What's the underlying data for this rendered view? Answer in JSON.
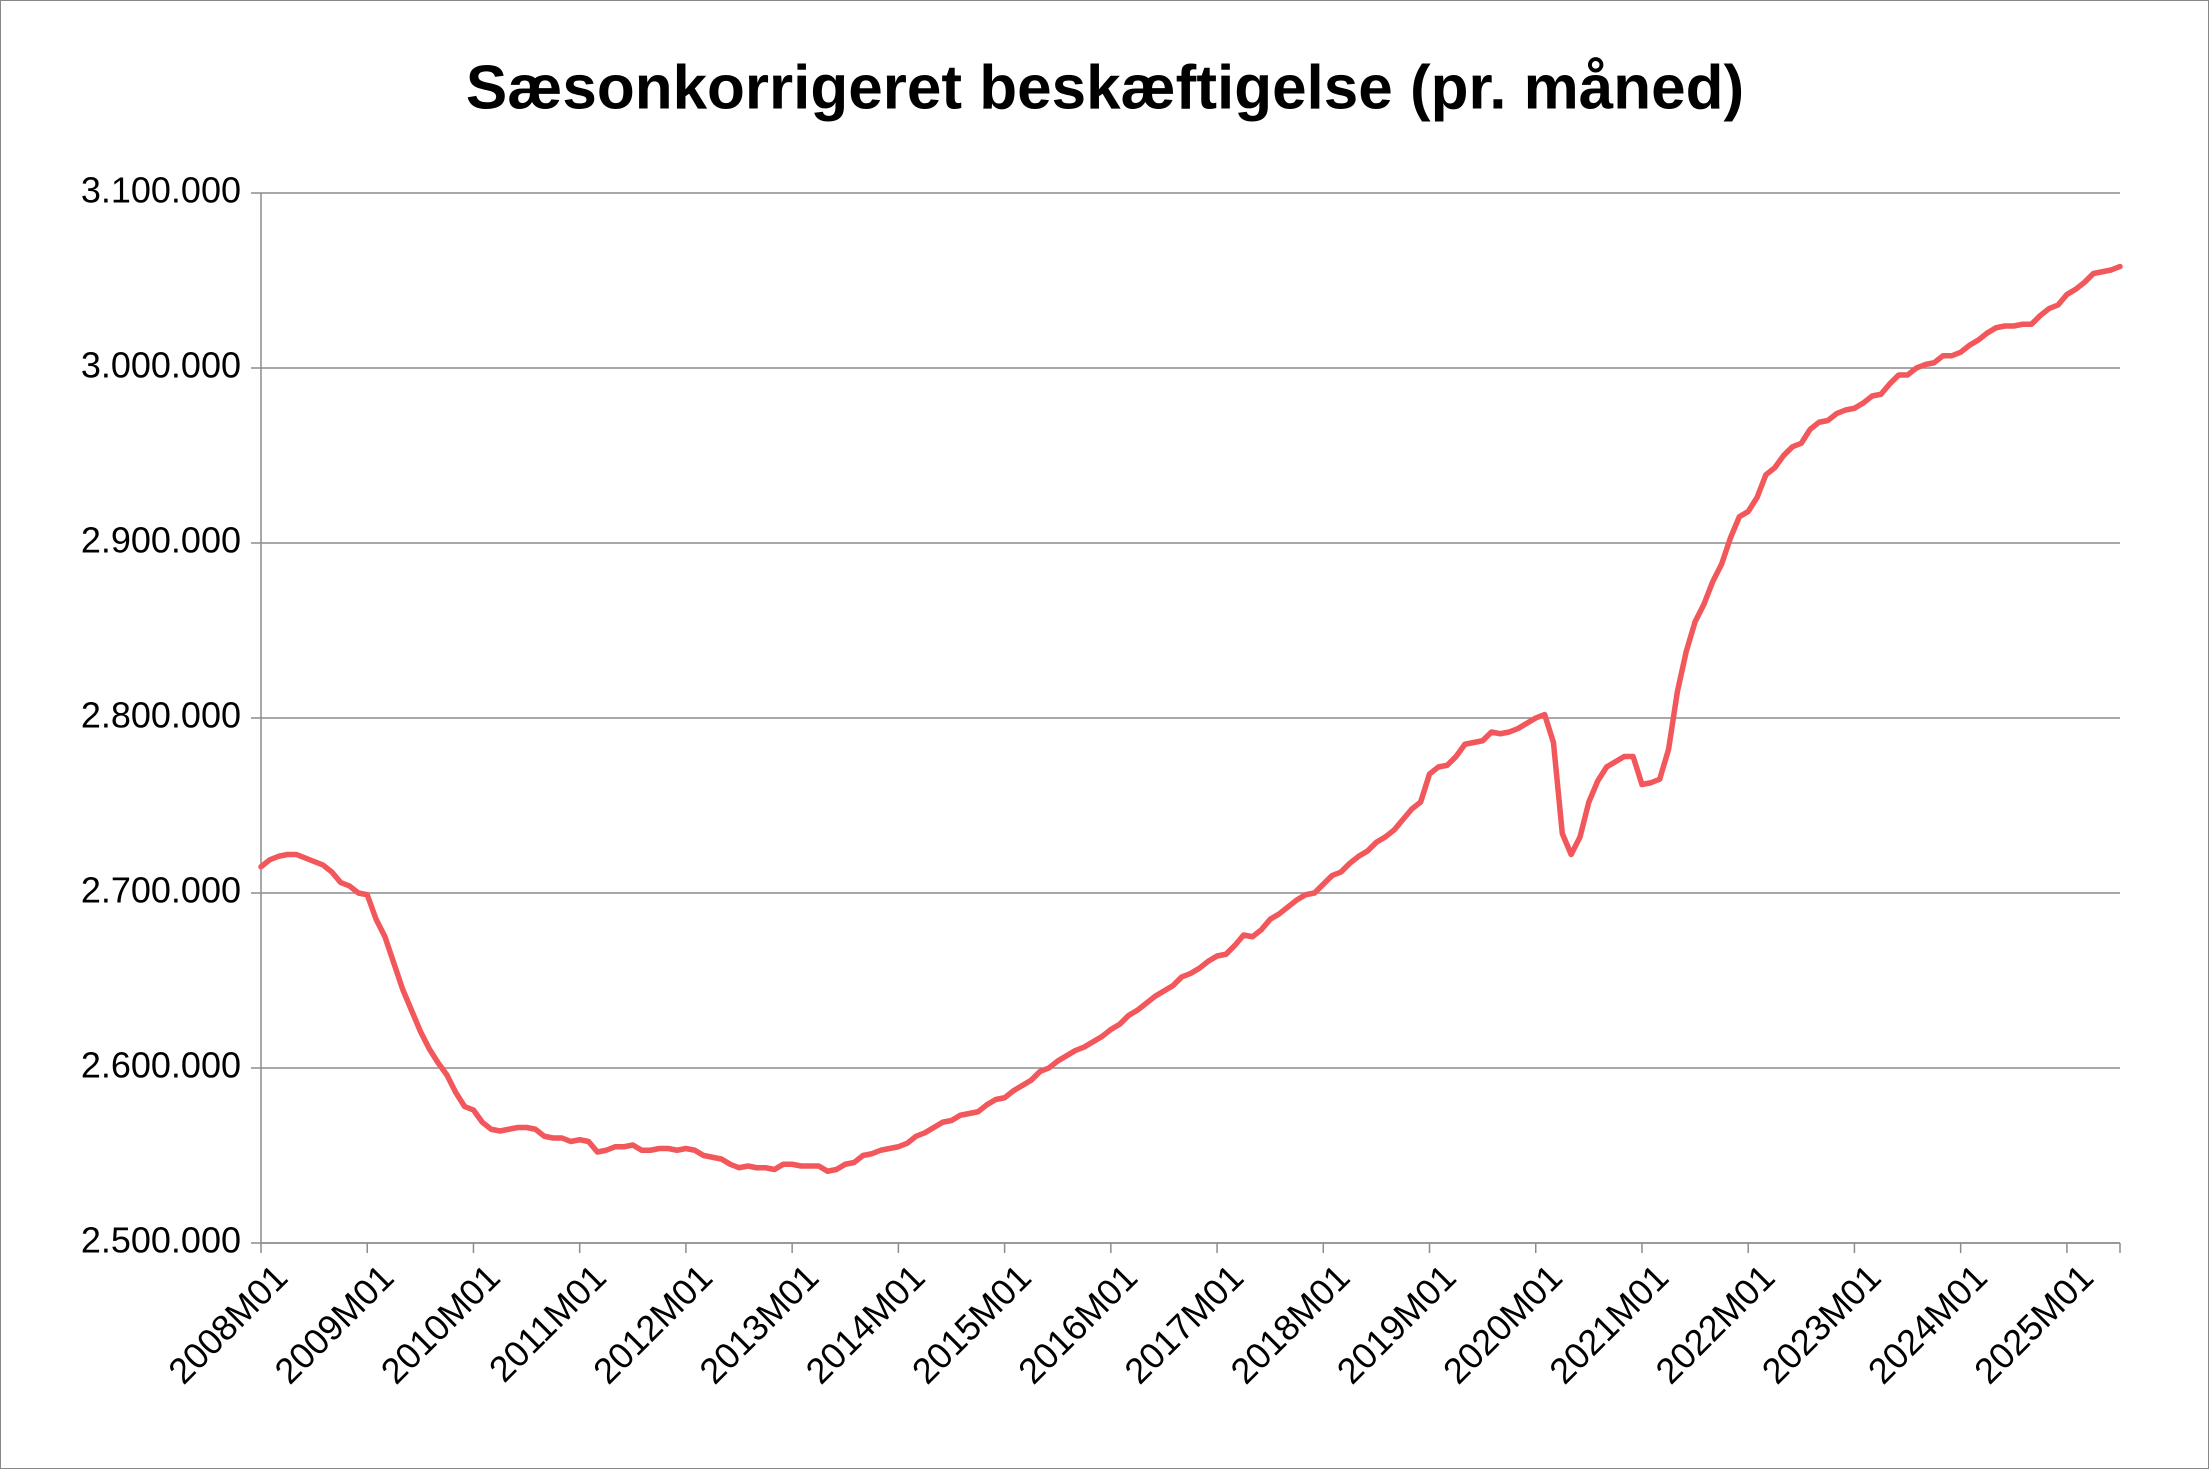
{
  "chart_data": {
    "type": "line",
    "title": "Sæsonkorrigeret beskæftigelse (pr. måned)",
    "color": "#f2575b",
    "grid": true,
    "ylim": [
      2500000,
      3100000
    ],
    "yticks": [
      {
        "value": 2500000,
        "label": "2.500.000"
      },
      {
        "value": 2600000,
        "label": "2.600.000"
      },
      {
        "value": 2700000,
        "label": "2.700.000"
      },
      {
        "value": 2800000,
        "label": "2.800.000"
      },
      {
        "value": 2900000,
        "label": "2.900.000"
      },
      {
        "value": 3000000,
        "label": "3.000.000"
      },
      {
        "value": 3100000,
        "label": "3.100.000"
      }
    ],
    "categories": [
      "2008M01",
      null,
      null,
      null,
      null,
      null,
      null,
      null,
      null,
      null,
      null,
      null,
      "2009M01",
      null,
      null,
      null,
      null,
      null,
      null,
      null,
      null,
      null,
      null,
      null,
      "2010M01",
      null,
      null,
      null,
      null,
      null,
      null,
      null,
      null,
      null,
      null,
      null,
      "2011M01",
      null,
      null,
      null,
      null,
      null,
      null,
      null,
      null,
      null,
      null,
      null,
      "2012M01",
      null,
      null,
      null,
      null,
      null,
      null,
      null,
      null,
      null,
      null,
      null,
      "2013M01",
      null,
      null,
      null,
      null,
      null,
      null,
      null,
      null,
      null,
      null,
      null,
      "2014M01",
      null,
      null,
      null,
      null,
      null,
      null,
      null,
      null,
      null,
      null,
      null,
      "2015M01",
      null,
      null,
      null,
      null,
      null,
      null,
      null,
      null,
      null,
      null,
      null,
      "2016M01",
      null,
      null,
      null,
      null,
      null,
      null,
      null,
      null,
      null,
      null,
      null,
      "2017M01",
      null,
      null,
      null,
      null,
      null,
      null,
      null,
      null,
      null,
      null,
      null,
      "2018M01",
      null,
      null,
      null,
      null,
      null,
      null,
      null,
      null,
      null,
      null,
      null,
      "2019M01",
      null,
      null,
      null,
      null,
      null,
      null,
      null,
      null,
      null,
      null,
      null,
      "2020M01",
      null,
      null,
      null,
      null,
      null,
      null,
      null,
      null,
      null,
      null,
      null,
      "2021M01",
      null,
      null,
      null,
      null,
      null,
      null,
      null,
      null,
      null,
      null,
      null,
      "2022M01",
      null,
      null,
      null,
      null,
      null,
      null,
      null,
      null,
      null,
      null,
      null,
      "2023M01",
      null,
      null,
      null,
      null,
      null,
      null,
      null,
      null,
      null,
      null,
      null,
      "2024M01",
      null,
      null,
      null,
      null,
      null,
      null,
      null,
      null,
      null,
      null,
      null,
      "2025M01",
      null,
      null,
      null,
      null,
      null,
      null
    ],
    "values": [
      2715000,
      2719000,
      2721000,
      2722000,
      2722000,
      2720000,
      2718000,
      2716000,
      2712000,
      2706000,
      2704000,
      2700000,
      2699000,
      2685000,
      2675000,
      2660000,
      2645000,
      2633000,
      2621000,
      2611000,
      2603000,
      2596000,
      2586000,
      2578000,
      2576000,
      2569000,
      2565000,
      2564000,
      2565000,
      2566000,
      2566000,
      2565000,
      2561000,
      2560000,
      2560000,
      2558000,
      2559000,
      2558000,
      2552000,
      2553000,
      2555000,
      2555000,
      2556000,
      2553000,
      2553000,
      2554000,
      2554000,
      2553000,
      2554000,
      2553000,
      2550000,
      2549000,
      2548000,
      2545000,
      2543000,
      2544000,
      2543000,
      2543000,
      2542000,
      2545000,
      2545000,
      2544000,
      2544000,
      2544000,
      2541000,
      2542000,
      2545000,
      2546000,
      2550000,
      2551000,
      2553000,
      2554000,
      2555000,
      2557000,
      2561000,
      2563000,
      2566000,
      2569000,
      2570000,
      2573000,
      2574000,
      2575000,
      2579000,
      2582000,
      2583000,
      2587000,
      2590000,
      2593000,
      2598000,
      2600000,
      2604000,
      2607000,
      2610000,
      2612000,
      2615000,
      2618000,
      2622000,
      2625000,
      2630000,
      2633000,
      2637000,
      2641000,
      2644000,
      2647000,
      2652000,
      2654000,
      2657000,
      2661000,
      2664000,
      2665000,
      2670000,
      2676000,
      2675000,
      2679000,
      2685000,
      2688000,
      2692000,
      2696000,
      2699000,
      2700000,
      2705000,
      2710000,
      2712000,
      2717000,
      2721000,
      2724000,
      2729000,
      2732000,
      2736000,
      2742000,
      2748000,
      2752000,
      2768000,
      2772000,
      2773000,
      2778000,
      2785000,
      2786000,
      2787000,
      2792000,
      2791000,
      2792000,
      2794000,
      2797000,
      2800000,
      2802000,
      2786000,
      2734000,
      2722000,
      2732000,
      2752000,
      2764000,
      2772000,
      2775000,
      2778000,
      2778000,
      2762000,
      2763000,
      2765000,
      2782000,
      2815000,
      2838000,
      2855000,
      2865000,
      2878000,
      2888000,
      2903000,
      2915000,
      2918000,
      2926000,
      2939000,
      2943000,
      2950000,
      2955000,
      2957000,
      2965000,
      2969000,
      2970000,
      2974000,
      2976000,
      2977000,
      2980000,
      2984000,
      2985000,
      2991000,
      2996000,
      2996000,
      3000000,
      3002000,
      3003000,
      3007000,
      3007000,
      3009000,
      3013000,
      3016000,
      3020000,
      3023000,
      3024000,
      3024000,
      3025000,
      3025000,
      3030000,
      3034000,
      3036000,
      3042000,
      3045000,
      3049000,
      3054000,
      3055000,
      3056000,
      3058000
    ]
  }
}
